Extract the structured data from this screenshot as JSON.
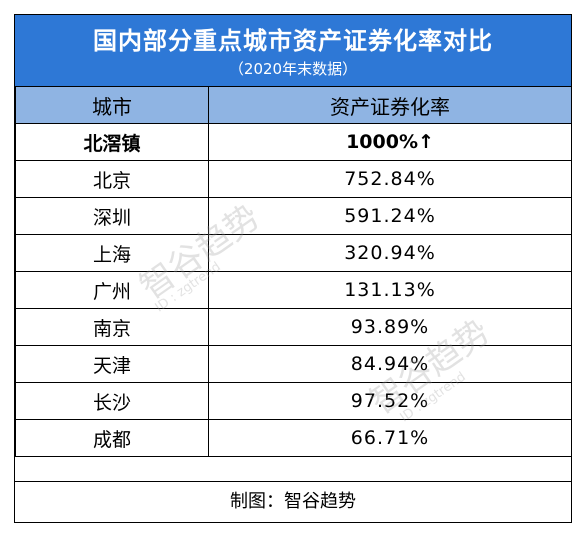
{
  "header": {
    "title": "国内部分重点城市资产证券化率对比",
    "subtitle": "（2020年末数据）"
  },
  "table": {
    "columns": [
      "城市",
      "资产证券化率"
    ],
    "rows": [
      {
        "city": "北滘镇",
        "rate": "1000%",
        "arrow": "↑",
        "highlight": true
      },
      {
        "city": "北京",
        "rate": "752.84%"
      },
      {
        "city": "深圳",
        "rate": "591.24%"
      },
      {
        "city": "上海",
        "rate": "320.94%"
      },
      {
        "city": "广州",
        "rate": "131.13%"
      },
      {
        "city": "南京",
        "rate": "93.89%"
      },
      {
        "city": "天津",
        "rate": "84.94%"
      },
      {
        "city": "长沙",
        "rate": "97.52%"
      },
      {
        "city": "成都",
        "rate": "66.71%"
      }
    ]
  },
  "footer": {
    "credit": "制图：智谷趋势"
  },
  "watermark": {
    "text": "智谷趋势",
    "id": "ID : zgtrend"
  }
}
